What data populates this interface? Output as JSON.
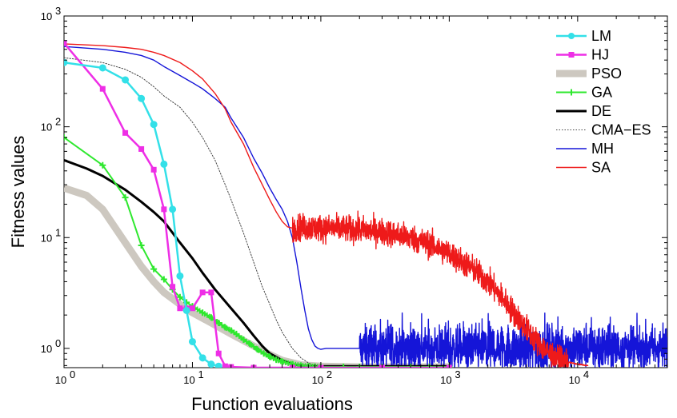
{
  "chart_data": {
    "type": "line",
    "title": "",
    "xlabel": "Function evaluations",
    "ylabel": "Fitness values",
    "xscale": "log",
    "yscale": "log",
    "xlim": [
      1,
      50000
    ],
    "ylim": [
      0.67,
      1000
    ],
    "x_ticks": [
      {
        "value": 1,
        "mantissa": "10",
        "exp": "0"
      },
      {
        "value": 10,
        "mantissa": "10",
        "exp": "1"
      },
      {
        "value": 100,
        "mantissa": "10",
        "exp": "2"
      },
      {
        "value": 1000,
        "mantissa": "10",
        "exp": "3"
      },
      {
        "value": 10000,
        "mantissa": "10",
        "exp": "4"
      }
    ],
    "y_ticks": [
      {
        "value": 1,
        "mantissa": "10",
        "exp": "0"
      },
      {
        "value": 10,
        "mantissa": "10",
        "exp": "1"
      },
      {
        "value": 100,
        "mantissa": "10",
        "exp": "2"
      },
      {
        "value": 1000,
        "mantissa": "10",
        "exp": "3"
      }
    ],
    "grid": false,
    "legend_position": "top-right",
    "series": [
      {
        "name": "LM",
        "color": "#33e0e8",
        "line_width": 2.5,
        "marker": "circle",
        "x": [
          1,
          2,
          3,
          4,
          5,
          6,
          7,
          8,
          9,
          10,
          12,
          14,
          16
        ],
        "y": [
          380,
          340,
          265,
          180,
          105,
          46,
          18,
          4.5,
          2.2,
          1.15,
          0.82,
          0.72,
          0.69
        ]
      },
      {
        "name": "HJ",
        "color": "#ee2ee6",
        "line_width": 2.5,
        "marker": "square",
        "x": [
          1,
          2,
          3,
          4,
          5,
          6,
          7,
          8,
          9,
          10,
          12,
          14,
          16,
          18,
          20,
          30,
          60,
          100,
          300,
          1000
        ],
        "y": [
          570,
          220,
          88,
          63,
          41,
          18,
          3.6,
          2.3,
          2.3,
          2.3,
          3.2,
          3.2,
          0.9,
          0.69,
          0.68,
          0.67,
          0.67,
          0.67,
          0.67,
          0.67
        ]
      },
      {
        "name": "PSO",
        "color": "#cdc8c0",
        "line_width": 9,
        "marker": "none",
        "x": [
          1,
          1.5,
          2,
          3,
          4,
          5,
          6,
          8,
          10,
          14,
          20,
          30,
          40,
          50,
          70,
          100,
          200,
          500,
          1000
        ],
        "y": [
          28,
          24,
          18,
          9,
          5.5,
          4.0,
          3.2,
          2.5,
          2.1,
          1.7,
          1.35,
          1.05,
          0.88,
          0.78,
          0.71,
          0.69,
          0.68,
          0.68,
          0.68
        ]
      },
      {
        "name": "GA",
        "color": "#2ee82e",
        "line_width": 2,
        "marker": "plus",
        "x": [
          1,
          2,
          3,
          4,
          5,
          6,
          7,
          8,
          9,
          10,
          12,
          14,
          16,
          18,
          20,
          22,
          25,
          28,
          32,
          36,
          40,
          45,
          50,
          60,
          70,
          80,
          90,
          100,
          150,
          200,
          300,
          500,
          700,
          1000
        ],
        "y": [
          80,
          45,
          23,
          8.5,
          5.2,
          4.2,
          3.4,
          2.9,
          2.6,
          2.4,
          2.1,
          1.9,
          1.7,
          1.55,
          1.45,
          1.35,
          1.2,
          1.1,
          0.98,
          0.9,
          0.84,
          0.79,
          0.76,
          0.72,
          0.7,
          0.69,
          0.685,
          0.68,
          0.68,
          0.68,
          0.68,
          0.68,
          0.68,
          0.68
        ]
      },
      {
        "name": "DE",
        "color": "#000000",
        "line_width": 3,
        "marker": "none",
        "x": [
          1,
          1.5,
          2,
          3,
          4,
          5,
          6,
          8,
          10,
          12,
          15,
          20,
          25,
          30,
          35,
          40,
          50,
          60,
          70,
          80,
          100,
          200,
          500,
          1000
        ],
        "y": [
          50,
          42,
          36,
          27,
          21,
          17,
          14,
          9,
          6.5,
          4.8,
          3.4,
          2.3,
          1.7,
          1.3,
          1.05,
          0.9,
          0.78,
          0.72,
          0.7,
          0.69,
          0.69,
          0.69,
          0.69,
          0.69
        ]
      },
      {
        "name": "CMA−ES",
        "color": "#444444",
        "line_width": 1,
        "marker": "none",
        "dash": "1.5,2",
        "x": [
          1,
          2,
          3,
          4,
          5,
          6,
          8,
          10,
          12,
          15,
          18,
          20,
          25,
          30,
          35,
          40,
          45,
          50,
          60,
          70,
          80,
          90
        ],
        "y": [
          420,
          380,
          330,
          280,
          230,
          190,
          150,
          110,
          80,
          50,
          30,
          22,
          11,
          6,
          3.6,
          2.5,
          1.8,
          1.4,
          1.0,
          0.82,
          0.74,
          0.7
        ]
      },
      {
        "name": "MH",
        "color": "#1515d8",
        "line_width": 1.4,
        "marker": "none",
        "x": [
          1,
          2,
          3,
          4,
          5,
          6,
          8,
          10,
          12,
          15,
          18,
          20,
          25,
          30,
          35,
          40,
          45,
          50,
          55,
          60,
          65,
          70,
          75,
          80,
          85,
          90,
          95,
          100,
          110,
          130,
          150,
          200
        ],
        "y": [
          530,
          500,
          470,
          440,
          400,
          350,
          290,
          250,
          220,
          180,
          150,
          120,
          80,
          52,
          38,
          28,
          22,
          18,
          14,
          10,
          6,
          3.5,
          2.2,
          1.5,
          1.2,
          1.05,
          1.0,
          0.98,
          1.0,
          1.0,
          1.0,
          1.0
        ],
        "noise_from": 200,
        "noise_to": 50000,
        "noise_level": 1.0,
        "noise_amp": 0.22
      },
      {
        "name": "SA",
        "color": "#ee1a1a",
        "line_width": 1.4,
        "marker": "none",
        "x": [
          1,
          2,
          3,
          4,
          5,
          6,
          8,
          10,
          12,
          15,
          18,
          20,
          25,
          30,
          35,
          40,
          45,
          50,
          55,
          60,
          65,
          70,
          80,
          100,
          150,
          200,
          300,
          500,
          700,
          1000,
          1500,
          2000,
          2500,
          3000,
          4000,
          5000,
          6000,
          7000,
          8000,
          10000,
          12000,
          15000,
          20000,
          30000,
          50000
        ],
        "y": [
          560,
          540,
          520,
          500,
          470,
          440,
          380,
          320,
          270,
          200,
          145,
          110,
          70,
          43,
          30,
          22,
          17,
          14,
          12.5,
          12.2,
          12.3,
          12.4,
          12.3,
          12.2,
          12.0,
          11.8,
          11.3,
          10.0,
          8.7,
          7.2,
          5.3,
          4.0,
          3.0,
          2.3,
          1.5,
          1.1,
          0.9,
          0.8,
          0.76,
          0.72,
          0.7,
          0.69,
          0.68,
          0.68,
          0.68
        ],
        "noise_from": 60,
        "noise_to": 12000,
        "noise_amp": 0.12
      }
    ]
  }
}
